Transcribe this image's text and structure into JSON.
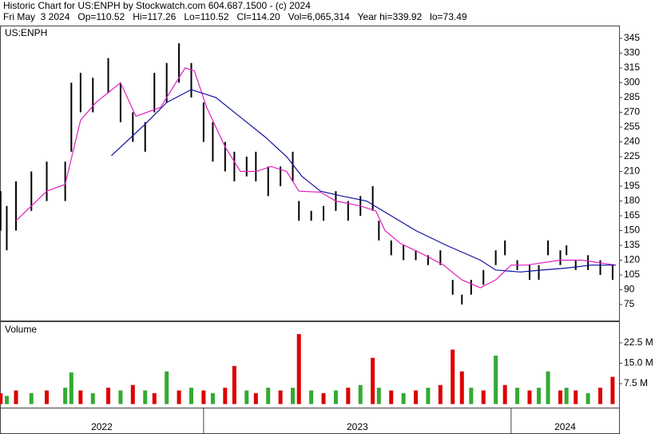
{
  "header": {
    "title": "Historic Chart for US:ENPH by Stockwatch.com 604.687.1500 - (c) 2024",
    "quote": "Fri May  3 2024   Op=110.52   Hi=117.26   Lo=110.52   Cl=114.20   Vol=6,065,314   Year hi=339.92   lo=73.49"
  },
  "chart_data": [
    {
      "type": "ohlc",
      "label": "US:ENPH",
      "color": "#000000",
      "x": [
        2022.34,
        2022.36,
        2022.39,
        2022.44,
        2022.49,
        2022.55,
        2022.57,
        2022.6,
        2022.64,
        2022.69,
        2022.73,
        2022.77,
        2022.81,
        2022.84,
        2022.88,
        2022.92,
        2022.96,
        2023.0,
        2023.03,
        2023.07,
        2023.1,
        2023.14,
        2023.17,
        2023.21,
        2023.25,
        2023.29,
        2023.31,
        2023.35,
        2023.39,
        2023.43,
        2023.47,
        2023.51,
        2023.55,
        2023.57,
        2023.61,
        2023.65,
        2023.69,
        2023.73,
        2023.77,
        2023.81,
        2023.84,
        2023.87,
        2023.91,
        2023.95,
        2023.98,
        2024.02,
        2024.06,
        2024.09,
        2024.12,
        2024.16,
        2024.18,
        2024.21,
        2024.25,
        2024.29,
        2024.33
      ],
      "high": [
        190,
        175,
        200,
        210,
        220,
        220,
        300,
        310,
        305,
        325,
        300,
        270,
        260,
        310,
        320,
        340,
        320,
        280,
        260,
        240,
        230,
        225,
        230,
        215,
        215,
        230,
        180,
        170,
        175,
        190,
        180,
        185,
        195,
        160,
        140,
        135,
        130,
        125,
        130,
        100,
        85,
        100,
        110,
        130,
        140,
        120,
        115,
        115,
        140,
        130,
        135,
        120,
        125,
        120,
        115
      ],
      "low": [
        150,
        130,
        150,
        170,
        180,
        180,
        230,
        270,
        270,
        290,
        260,
        240,
        230,
        270,
        280,
        300,
        285,
        240,
        220,
        210,
        200,
        205,
        200,
        185,
        195,
        200,
        160,
        160,
        160,
        170,
        160,
        165,
        170,
        140,
        125,
        120,
        120,
        115,
        115,
        85,
        75,
        85,
        95,
        115,
        125,
        110,
        100,
        100,
        125,
        115,
        125,
        110,
        110,
        105,
        100
      ],
      "averages": [
        {
          "color": "#e020c0",
          "x": [
            2022.39,
            2022.49,
            2022.55,
            2022.6,
            2022.65,
            2022.73,
            2022.78,
            2022.86,
            2022.94,
            2022.97,
            2023.01,
            2023.07,
            2023.12,
            2023.17,
            2023.22,
            2023.27,
            2023.31,
            2023.38,
            2023.43,
            2023.51,
            2023.56,
            2023.59,
            2023.64,
            2023.72,
            2023.78,
            2023.84,
            2023.9,
            2023.95,
            2024.0,
            2024.05,
            2024.16,
            2024.23,
            2024.34
          ],
          "values": [
            160,
            190,
            197,
            262,
            280,
            300,
            266,
            275,
            315,
            312,
            275,
            235,
            210,
            210,
            215,
            210,
            190,
            189,
            180,
            175,
            170,
            150,
            137,
            125,
            115,
            100,
            92,
            100,
            115,
            115,
            120,
            120,
            115
          ]
        },
        {
          "color": "#1010a0",
          "x": [
            2022.7,
            2022.81,
            2022.88,
            2022.96,
            2023.04,
            2023.12,
            2023.2,
            2023.27,
            2023.32,
            2023.38,
            2023.45,
            2023.53,
            2023.61,
            2023.69,
            2023.79,
            2023.9,
            2023.95,
            2024.03,
            2024.1,
            2024.18,
            2024.26,
            2024.34
          ],
          "values": [
            226,
            258,
            280,
            293,
            285,
            265,
            245,
            225,
            205,
            190,
            185,
            180,
            165,
            150,
            135,
            120,
            110,
            108,
            110,
            112,
            115,
            115
          ]
        }
      ],
      "ylim": [
        59.6,
        351.5
      ],
      "yticks": [
        75,
        90,
        105,
        120,
        135,
        150,
        165,
        180,
        195,
        210,
        225,
        240,
        255,
        270,
        285,
        300,
        315,
        330,
        345
      ],
      "xlim": [
        2022.338,
        2024.351
      ],
      "xticks": [
        2022,
        2023,
        2024
      ]
    },
    {
      "type": "volume",
      "label": "Volume",
      "values": [
        4,
        3,
        5,
        4,
        5,
        6,
        11.6,
        5,
        4,
        6,
        5,
        7,
        5,
        4,
        12,
        5,
        6,
        5,
        4,
        6,
        14,
        5,
        4,
        6,
        5,
        6,
        25.7,
        5,
        4,
        5,
        6,
        7,
        17,
        6,
        5,
        4,
        5,
        6,
        7,
        20,
        12,
        6,
        5,
        17.8,
        7,
        6,
        5,
        6,
        12,
        5,
        6,
        5,
        4,
        6,
        10
      ],
      "colors": [
        "#dd0000",
        "#33aa33",
        "#dd0000",
        "#33aa33",
        "#dd0000",
        "#33aa33",
        "#33aa33",
        "#dd0000",
        "#33aa33",
        "#dd0000",
        "#33aa33",
        "#dd0000",
        "#33aa33",
        "#dd0000",
        "#33aa33",
        "#dd0000",
        "#33aa33",
        "#dd0000",
        "#33aa33",
        "#dd0000",
        "#dd0000",
        "#33aa33",
        "#dd0000",
        "#33aa33",
        "#dd0000",
        "#33aa33",
        "#dd0000",
        "#33aa33",
        "#dd0000",
        "#33aa33",
        "#dd0000",
        "#33aa33",
        "#dd0000",
        "#33aa33",
        "#dd0000",
        "#33aa33",
        "#dd0000",
        "#33aa33",
        "#dd0000",
        "#dd0000",
        "#dd0000",
        "#33aa33",
        "#dd0000",
        "#33aa33",
        "#dd0000",
        "#33aa33",
        "#dd0000",
        "#33aa33",
        "#33aa33",
        "#dd0000",
        "#33aa33",
        "#dd0000",
        "#33aa33",
        "#dd0000",
        "#dd0000"
      ],
      "ylim": [
        -1.3,
        30.1
      ],
      "yticks": [
        {
          "value": 7.5,
          "label": "7.5 M"
        },
        {
          "value": 15,
          "label": "15.0 M"
        },
        {
          "value": 22.5,
          "label": "22.5 M"
        }
      ]
    }
  ]
}
